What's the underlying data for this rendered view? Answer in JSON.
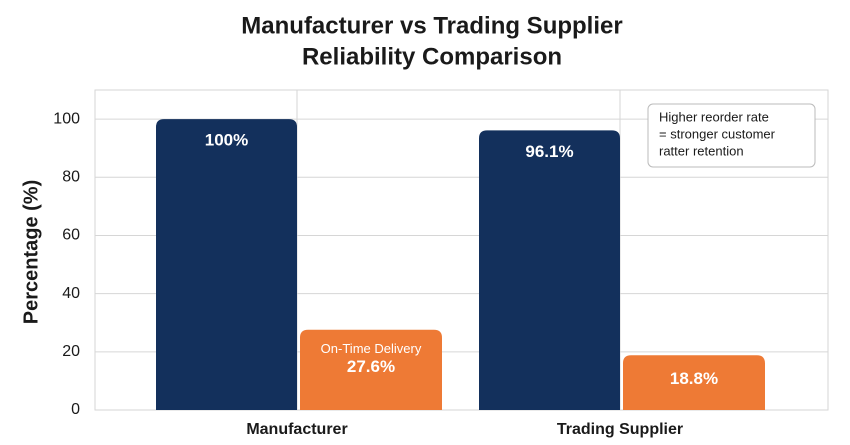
{
  "chart_data": {
    "type": "bar",
    "title": [
      "Manufacturer vs Trading Supplier",
      "Reliability Comparison"
    ],
    "y_label": "Percentage (%)",
    "categories": [
      "Manufacturer",
      "Trading Supplier"
    ],
    "series": [
      {
        "color": "#13305c",
        "values": [
          100,
          96.1
        ],
        "value_labels": [
          "100%",
          "96.1%"
        ]
      },
      {
        "name": "On-Time Delivery",
        "color": "#ee7a35",
        "values": [
          27.6,
          18.8
        ],
        "value_labels": [
          "27.6%",
          "18.8%"
        ]
      }
    ],
    "annotation": [
      "Higher reorder rate",
      "= stronger customer",
      "ratter retention"
    ],
    "ylim": [
      0,
      110
    ],
    "yticks": [
      0,
      20,
      40,
      60,
      80,
      100
    ],
    "grid": true
  }
}
